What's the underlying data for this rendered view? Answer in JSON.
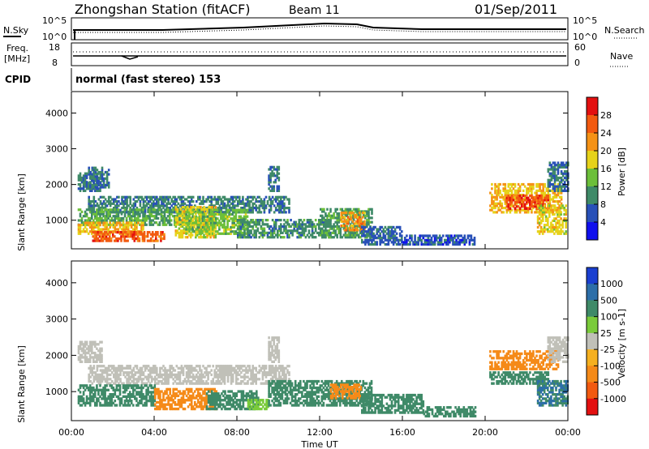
{
  "header": {
    "title": "Zhongshan Station (fitACF)",
    "beam": "Beam 11",
    "date": "01/Sep/2011"
  },
  "top_panels": {
    "nsky": {
      "left_label": "N.Sky",
      "right_label": "N.Search",
      "left_ticks": [
        "10^5",
        "10^0"
      ],
      "right_ticks": [
        "10^5",
        "10^0"
      ]
    },
    "freq": {
      "left_label": "Freq.",
      "left_unit": "[MHz]",
      "left_ticks": [
        "18",
        "8"
      ],
      "right_label": "Nave",
      "right_ticks": [
        "60",
        "0"
      ]
    },
    "cpid": {
      "label": "CPID",
      "text": "normal (fast stereo) 153"
    }
  },
  "chart_data": [
    {
      "type": "heatmap",
      "title": "",
      "xlabel": "Time UT",
      "ylabel": "Slant Range [km]",
      "xticks": [
        "00:00",
        "04:00",
        "08:00",
        "12:00",
        "16:00",
        "20:00",
        "00:00"
      ],
      "xlim": [
        0,
        24
      ],
      "ylim": [
        200,
        4600
      ],
      "yticks": [
        1000,
        2000,
        3000,
        4000
      ],
      "colorbar": {
        "label": "Power [dB]",
        "ticks": [
          4,
          8,
          12,
          16,
          20,
          24,
          28
        ],
        "range": [
          0,
          32
        ],
        "colors": [
          "#1010ee",
          "#2850b8",
          "#3f8a68",
          "#6cbf3a",
          "#e6d21a",
          "#f59216",
          "#f25a10",
          "#e31010"
        ]
      },
      "regions": [
        {
          "x": [
            0.3,
            1.4
          ],
          "y": [
            1800,
            2300
          ],
          "v": 9
        },
        {
          "x": [
            0.8,
            1.8
          ],
          "y": [
            1900,
            2500
          ],
          "v": 8
        },
        {
          "x": [
            9.5,
            10.0
          ],
          "y": [
            1800,
            2500
          ],
          "v": 8
        },
        {
          "x": [
            0.8,
            10.5
          ],
          "y": [
            1200,
            1650
          ],
          "v": 9
        },
        {
          "x": [
            0.3,
            5.5
          ],
          "y": [
            850,
            1300
          ],
          "v": 12
        },
        {
          "x": [
            0.3,
            3.5
          ],
          "y": [
            600,
            950
          ],
          "v": 20
        },
        {
          "x": [
            1.0,
            4.5
          ],
          "y": [
            400,
            700
          ],
          "v": 26
        },
        {
          "x": [
            5.0,
            7.0
          ],
          "y": [
            500,
            1400
          ],
          "v": 18
        },
        {
          "x": [
            5.5,
            8.5
          ],
          "y": [
            600,
            1300
          ],
          "v": 14
        },
        {
          "x": [
            8.0,
            12.5
          ],
          "y": [
            500,
            1000
          ],
          "v": 10
        },
        {
          "x": [
            12.0,
            14.5
          ],
          "y": [
            500,
            1300
          ],
          "v": 11
        },
        {
          "x": [
            13.0,
            14.2
          ],
          "y": [
            700,
            1200
          ],
          "v": 22
        },
        {
          "x": [
            14.0,
            16.0
          ],
          "y": [
            300,
            800
          ],
          "v": 7
        },
        {
          "x": [
            16.0,
            19.5
          ],
          "y": [
            300,
            550
          ],
          "v": 6
        },
        {
          "x": [
            20.2,
            23.7
          ],
          "y": [
            1200,
            2000
          ],
          "v": 20
        },
        {
          "x": [
            21.0,
            23.0
          ],
          "y": [
            1300,
            1700
          ],
          "v": 27
        },
        {
          "x": [
            22.5,
            23.9
          ],
          "y": [
            600,
            1400
          ],
          "v": 18
        },
        {
          "x": [
            23.0,
            24.0
          ],
          "y": [
            1800,
            2600
          ],
          "v": 8
        }
      ]
    },
    {
      "type": "heatmap",
      "title": "",
      "xlabel": "Time UT",
      "ylabel": "Slant Range [km]",
      "xticks": [
        "00:00",
        "04:00",
        "08:00",
        "12:00",
        "16:00",
        "20:00",
        "00:00"
      ],
      "xlim": [
        0,
        24
      ],
      "ylim": [
        200,
        4600
      ],
      "yticks": [
        1000,
        2000,
        3000,
        4000
      ],
      "colorbar": {
        "label": "Velocity [m s-1]",
        "ticks": [
          1000,
          500,
          100,
          25,
          -25,
          -100,
          -500,
          -1000
        ],
        "levels": [
          1000,
          500,
          100,
          25,
          -25,
          -100,
          -500,
          -1000
        ],
        "colors": [
          "#1a3fd0",
          "#2c6ea8",
          "#3f8a68",
          "#7acb3a",
          "#c0c0b8",
          "#f5b020",
          "#f58a18",
          "#f25a10",
          "#e31010"
        ]
      },
      "regions": [
        {
          "x": [
            0.3,
            1.5
          ],
          "y": [
            1800,
            2400
          ],
          "v": 0
        },
        {
          "x": [
            0.8,
            10.5
          ],
          "y": [
            1200,
            1700
          ],
          "v": 0
        },
        {
          "x": [
            9.5,
            10.0
          ],
          "y": [
            1800,
            2500
          ],
          "v": 0
        },
        {
          "x": [
            0.3,
            4.0
          ],
          "y": [
            600,
            1200
          ],
          "v": 200
        },
        {
          "x": [
            4.0,
            7.0
          ],
          "y": [
            500,
            1100
          ],
          "v": -300
        },
        {
          "x": [
            6.5,
            9.0
          ],
          "y": [
            500,
            1000
          ],
          "v": 200
        },
        {
          "x": [
            8.5,
            9.5
          ],
          "y": [
            500,
            800
          ],
          "v": 60
        },
        {
          "x": [
            9.5,
            14.5
          ],
          "y": [
            600,
            1300
          ],
          "v": 300
        },
        {
          "x": [
            12.5,
            14.0
          ],
          "y": [
            800,
            1200
          ],
          "v": -150
        },
        {
          "x": [
            14.0,
            17.0
          ],
          "y": [
            400,
            900
          ],
          "v": 300
        },
        {
          "x": [
            17.0,
            19.5
          ],
          "y": [
            300,
            550
          ],
          "v": 300
        },
        {
          "x": [
            20.2,
            23.5
          ],
          "y": [
            1600,
            2100
          ],
          "v": -300
        },
        {
          "x": [
            20.2,
            23.0
          ],
          "y": [
            1200,
            1550
          ],
          "v": 200
        },
        {
          "x": [
            22.5,
            24.0
          ],
          "y": [
            600,
            1300
          ],
          "v": 500
        },
        {
          "x": [
            23.0,
            24.0
          ],
          "y": [
            1800,
            2500
          ],
          "v": 0
        }
      ]
    }
  ]
}
